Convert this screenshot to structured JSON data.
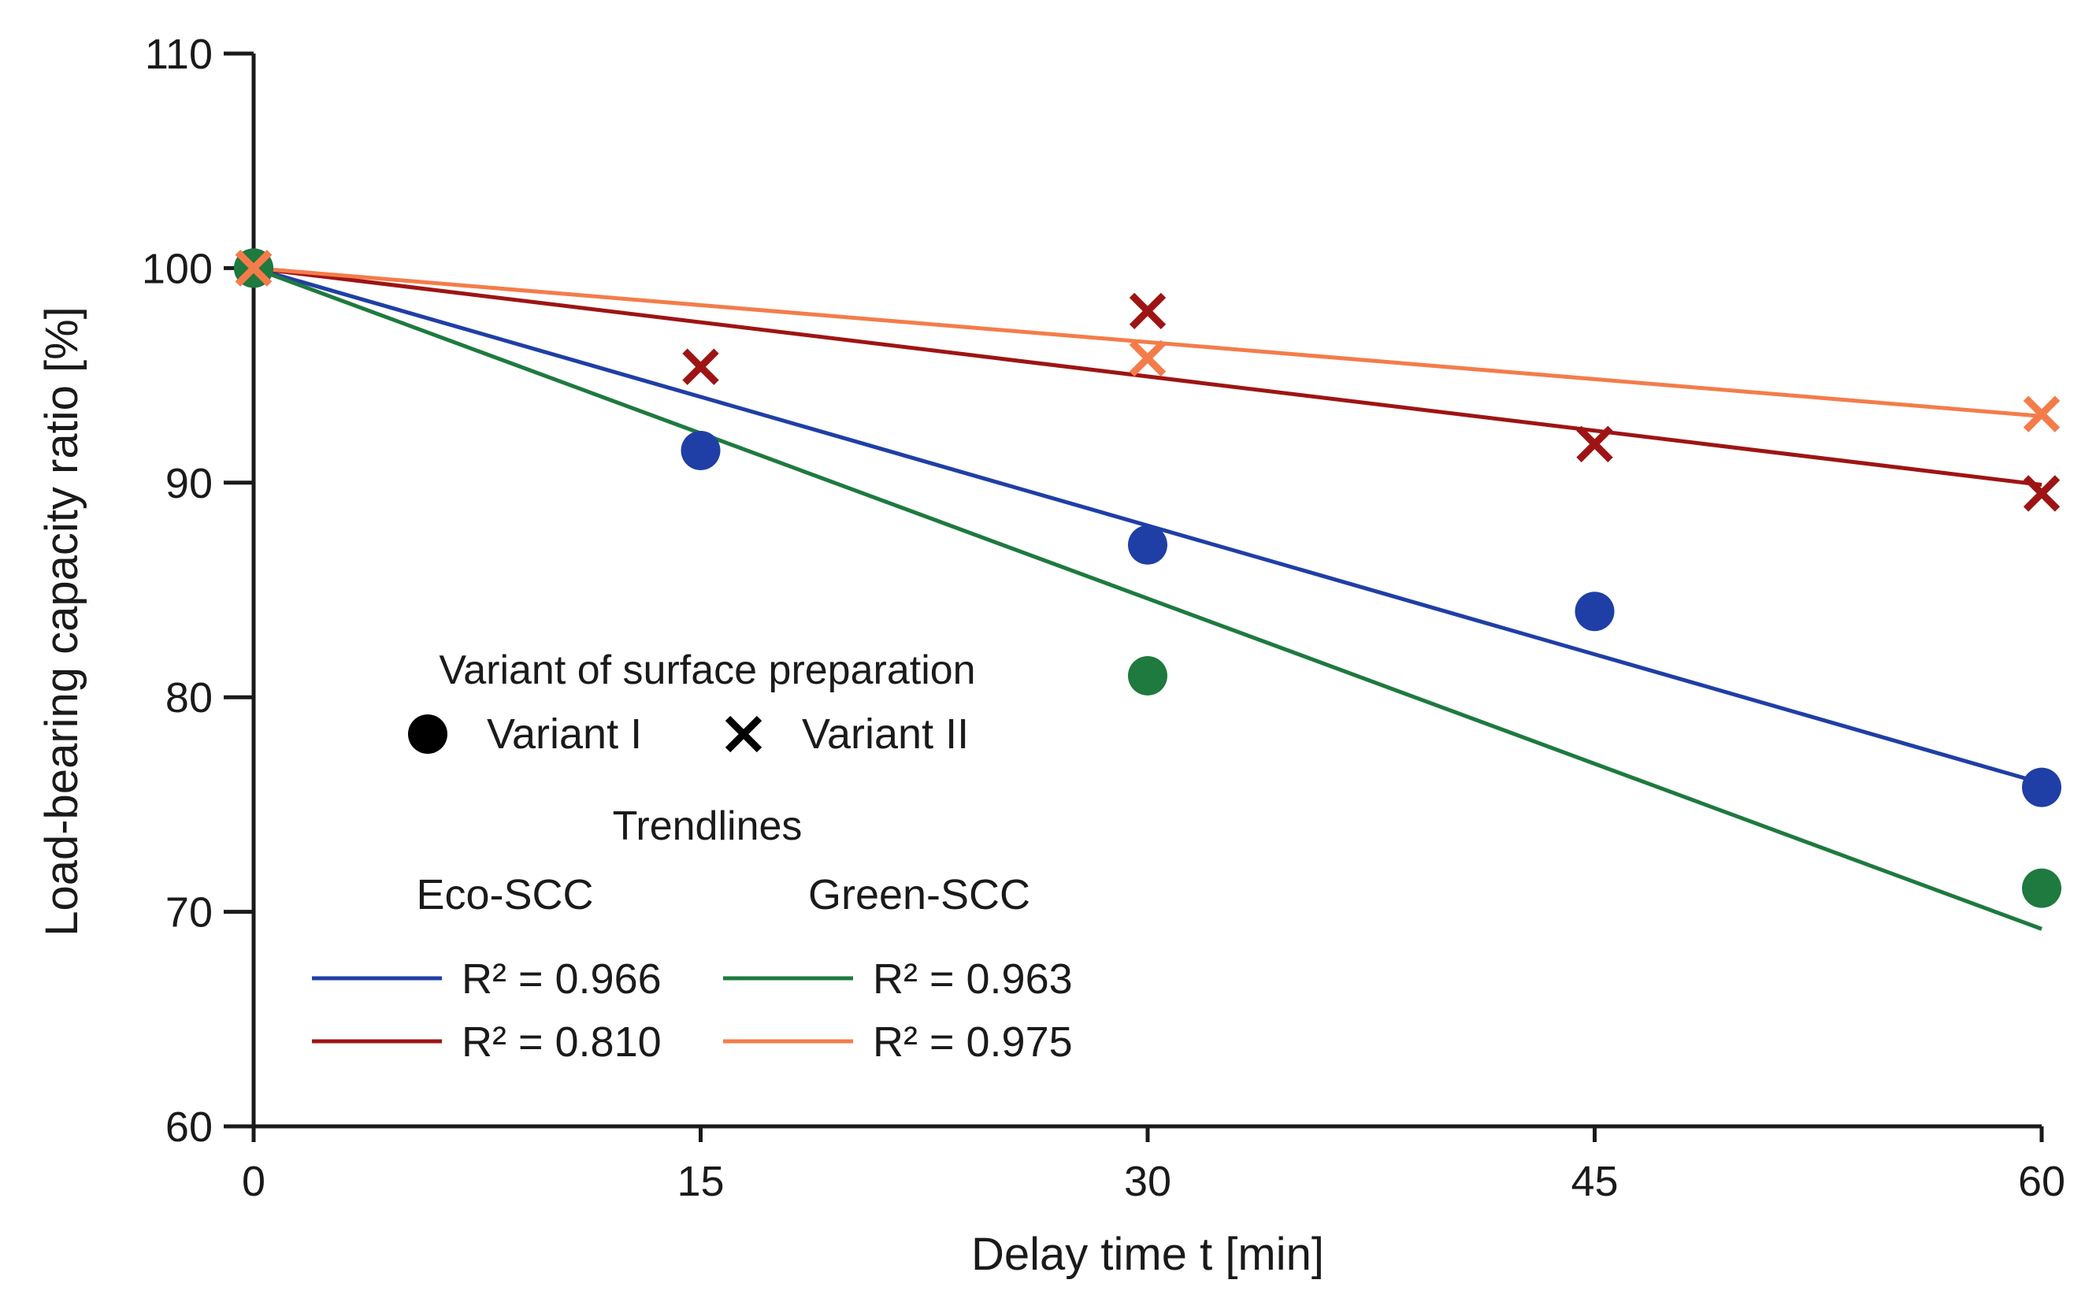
{
  "chart_data": {
    "type": "scatter",
    "title": "",
    "xlabel": "Delay time t [min]",
    "ylabel": "Load-bearing capacity ratio [%]",
    "xlim": [
      0,
      60
    ],
    "ylim": [
      60,
      110
    ],
    "x_ticks": [
      0,
      15,
      30,
      45,
      60
    ],
    "y_ticks": [
      60,
      70,
      80,
      90,
      100,
      110
    ],
    "grid": false,
    "legend_position": "bottom-left",
    "legend": {
      "marker_title": "Variant of surface preparation",
      "marker_items": [
        {
          "marker": "circle",
          "label": "Variant I"
        },
        {
          "marker": "cross",
          "label": "Variant II"
        }
      ],
      "trend_title": "Trendlines",
      "group_headers": [
        "Eco-SCC",
        "Green-SCC"
      ],
      "trend_items": [
        {
          "color": "#1f3fa6",
          "label": "R² = 0.966"
        },
        {
          "color": "#1e7a3e",
          "label": "R² = 0.963"
        },
        {
          "color": "#9e1414",
          "label": "R² = 0.810"
        },
        {
          "color": "#f47c4a",
          "label": "R² = 0.975"
        }
      ]
    },
    "series": [
      {
        "id": "eco-I",
        "color": "#1f3fa6",
        "marker": "circle",
        "points": [
          [
            0,
            100
          ],
          [
            15,
            91.5
          ],
          [
            30,
            87.1
          ],
          [
            45,
            84
          ],
          [
            60,
            75.8
          ]
        ],
        "trend": [
          [
            0,
            100
          ],
          [
            60,
            76
          ]
        ]
      },
      {
        "id": "green-I",
        "color": "#1e7a3e",
        "marker": "circle",
        "points": [
          [
            0,
            100
          ],
          [
            30,
            81
          ],
          [
            60,
            71.1
          ]
        ],
        "trend": [
          [
            0,
            100
          ],
          [
            60,
            69.2
          ]
        ]
      },
      {
        "id": "eco-II",
        "color": "#9e1414",
        "marker": "cross",
        "points": [
          [
            0,
            100
          ],
          [
            15,
            95.4
          ],
          [
            30,
            98
          ],
          [
            45,
            91.8
          ],
          [
            60,
            89.5
          ]
        ],
        "trend": [
          [
            0,
            100
          ],
          [
            60,
            89.9
          ]
        ]
      },
      {
        "id": "green-II",
        "color": "#f47c4a",
        "marker": "cross",
        "points": [
          [
            0,
            100
          ],
          [
            30,
            95.8
          ],
          [
            60,
            93.2
          ]
        ],
        "trend": [
          [
            0,
            100
          ],
          [
            60,
            93.1
          ]
        ]
      }
    ]
  }
}
